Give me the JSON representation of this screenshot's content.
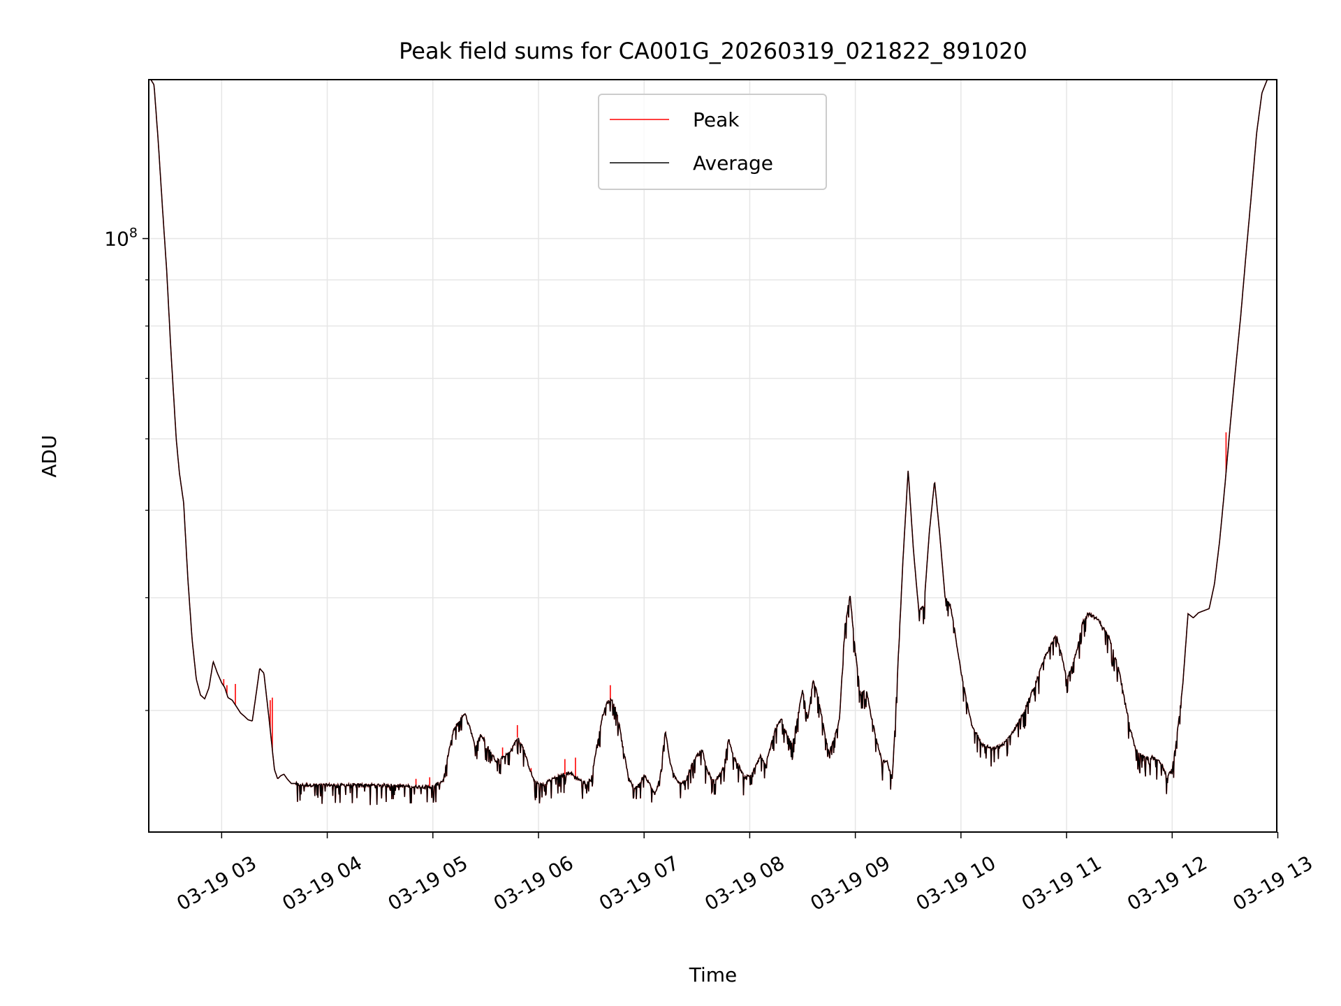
{
  "chart_data": {
    "type": "line",
    "title": "Peak field sums for CA001G_20260319_021822_891020",
    "xlabel": "Time",
    "ylabel": "ADU",
    "yscale": "log",
    "x_unit": "hours",
    "xlim": [
      2.31,
      12.99
    ],
    "ylim": [
      22000000,
      150000000
    ],
    "grid": true,
    "legend_location": "upper center",
    "x_ticks": [
      {
        "value": 3,
        "label": "03-19 03"
      },
      {
        "value": 4,
        "label": "03-19 04"
      },
      {
        "value": 5,
        "label": "03-19 05"
      },
      {
        "value": 6,
        "label": "03-19 06"
      },
      {
        "value": 7,
        "label": "03-19 07"
      },
      {
        "value": 8,
        "label": "03-19 08"
      },
      {
        "value": 9,
        "label": "03-19 09"
      },
      {
        "value": 10,
        "label": "03-19 10"
      },
      {
        "value": 11,
        "label": "03-19 11"
      },
      {
        "value": 12,
        "label": "03-19 12"
      },
      {
        "value": 13,
        "label": "03-19 13"
      }
    ],
    "y_ticks": [
      {
        "value": 100000000,
        "base": "10",
        "exp": "8"
      }
    ],
    "y_minor_ticks": [
      30000000,
      40000000,
      50000000,
      60000000,
      70000000,
      80000000,
      90000000
    ],
    "series": [
      {
        "name": "Average",
        "color": "#000000",
        "x": [
          2.31,
          2.33,
          2.36,
          2.4,
          2.44,
          2.48,
          2.52,
          2.57,
          2.6,
          2.64,
          2.68,
          2.72,
          2.76,
          2.8,
          2.84,
          2.88,
          2.92,
          2.96,
          3.0,
          3.03,
          3.06,
          3.1,
          3.14,
          3.18,
          3.21,
          3.25,
          3.29,
          3.33,
          3.36,
          3.4,
          3.45,
          3.5,
          3.53,
          3.56,
          3.59,
          3.62,
          3.66,
          3.7,
          3.75,
          3.8,
          3.85,
          3.9,
          4.0,
          4.2,
          4.4,
          4.6,
          4.8,
          5.0,
          5.1,
          5.15,
          5.2,
          5.25,
          5.3,
          5.35,
          5.4,
          5.45,
          5.5,
          5.55,
          5.6,
          5.65,
          5.7,
          5.75,
          5.8,
          5.85,
          5.9,
          5.95,
          6.0,
          6.05,
          6.1,
          6.2,
          6.3,
          6.35,
          6.4,
          6.45,
          6.5,
          6.55,
          6.6,
          6.65,
          6.7,
          6.75,
          6.8,
          6.85,
          6.9,
          6.95,
          7.0,
          7.05,
          7.1,
          7.15,
          7.2,
          7.25,
          7.3,
          7.35,
          7.4,
          7.45,
          7.5,
          7.55,
          7.6,
          7.65,
          7.7,
          7.75,
          7.8,
          7.85,
          7.9,
          7.95,
          8.0,
          8.05,
          8.1,
          8.15,
          8.2,
          8.25,
          8.3,
          8.35,
          8.4,
          8.45,
          8.5,
          8.55,
          8.6,
          8.65,
          8.7,
          8.75,
          8.8,
          8.85,
          8.9,
          8.95,
          9.0,
          9.05,
          9.1,
          9.15,
          9.2,
          9.25,
          9.3,
          9.35,
          9.4,
          9.45,
          9.5,
          9.55,
          9.6,
          9.65,
          9.7,
          9.75,
          9.8,
          9.85,
          9.9,
          9.95,
          10.0,
          10.1,
          10.2,
          10.3,
          10.4,
          10.5,
          10.6,
          10.7,
          10.8,
          10.85,
          10.9,
          10.95,
          11.0,
          11.05,
          11.1,
          11.15,
          11.2,
          11.3,
          11.4,
          11.5,
          11.55,
          11.6,
          11.65,
          11.7,
          11.75,
          11.8,
          11.9,
          11.95,
          12.0,
          12.05,
          12.1,
          12.15,
          12.2,
          12.25,
          12.3,
          12.35,
          12.4,
          12.45,
          12.5,
          12.55,
          12.6,
          12.65,
          12.7,
          12.75,
          12.8,
          12.85,
          12.9,
          12.95,
          12.99
        ],
        "values": [
          150000000,
          150000000,
          148000000,
          128000000,
          108000000,
          92000000,
          75000000,
          60000000,
          55000000,
          51000000,
          42000000,
          36000000,
          32500000,
          31200000,
          30900000,
          31800000,
          34000000,
          33000000,
          32200000,
          31800000,
          31000000,
          30800000,
          30300000,
          29800000,
          29600000,
          29300000,
          29200000,
          31500000,
          33400000,
          33000000,
          29300000,
          25800000,
          25200000,
          25400000,
          25500000,
          25200000,
          24900000,
          24900000,
          24800000,
          24800000,
          24800000,
          24800000,
          24800000,
          24800000,
          24800000,
          24800000,
          24700000,
          24700000,
          25100000,
          27000000,
          28600000,
          29200000,
          29800000,
          28800000,
          27300000,
          28200000,
          27700000,
          26900000,
          26400000,
          26600000,
          26800000,
          27200000,
          28000000,
          27400000,
          26200000,
          25200000,
          24900000,
          24800000,
          25100000,
          25400000,
          25600000,
          25300000,
          25100000,
          24900000,
          25200000,
          27300000,
          29400000,
          30600000,
          30900000,
          29600000,
          27400000,
          25300000,
          24600000,
          24800000,
          25500000,
          24900000,
          24200000,
          25200000,
          28500000,
          26100000,
          25200000,
          24900000,
          25100000,
          26200000,
          26800000,
          27100000,
          25700000,
          25100000,
          25300000,
          25900000,
          27900000,
          26600000,
          26000000,
          25300000,
          25400000,
          25900000,
          26700000,
          26100000,
          27400000,
          28800000,
          29400000,
          28200000,
          27600000,
          29300000,
          31600000,
          29400000,
          32500000,
          31000000,
          28700000,
          26900000,
          27900000,
          29300000,
          37100000,
          40300000,
          34800000,
          31200000,
          31800000,
          29600000,
          27900000,
          26400000,
          26300000,
          25200000,
          33000000,
          43800000,
          55400000,
          45200000,
          38700000,
          39100000,
          47200000,
          53900000,
          46900000,
          40000000,
          39200000,
          36200000,
          33100000,
          29000000,
          27500000,
          27200000,
          27500000,
          28500000,
          30000000,
          32000000,
          34500000,
          35400000,
          36400000,
          34800000,
          32500000,
          33500000,
          35000000,
          37500000,
          38500000,
          37800000,
          36200000,
          33200000,
          30800000,
          28800000,
          27200000,
          26800000,
          26600000,
          26700000,
          26200000,
          25300000,
          25800000,
          28400000,
          32000000,
          38400000,
          38000000,
          38500000,
          38700000,
          38900000,
          41400000,
          46300000,
          53400000,
          62200000,
          71700000,
          82300000,
          96400000,
          112000000,
          131000000,
          145000000,
          150000000,
          150000000,
          150000000
        ]
      },
      {
        "name": "Peak",
        "color": "#ff0000",
        "base_series": "Average",
        "spikes": [
          {
            "x": 3.02,
            "y": 32500000
          },
          {
            "x": 3.05,
            "y": 32000000
          },
          {
            "x": 3.13,
            "y": 32100000
          },
          {
            "x": 3.46,
            "y": 30800000
          },
          {
            "x": 3.48,
            "y": 31000000
          },
          {
            "x": 4.84,
            "y": 25200000
          },
          {
            "x": 4.97,
            "y": 25300000
          },
          {
            "x": 5.66,
            "y": 27300000
          },
          {
            "x": 5.8,
            "y": 28900000
          },
          {
            "x": 5.93,
            "y": 25900000
          },
          {
            "x": 6.25,
            "y": 26500000
          },
          {
            "x": 6.35,
            "y": 26600000
          },
          {
            "x": 6.68,
            "y": 32000000
          },
          {
            "x": 12.51,
            "y": 61000000
          }
        ]
      }
    ],
    "legend": [
      {
        "label": "Peak",
        "color": "#ff0000"
      },
      {
        "label": "Average",
        "color": "#000000"
      }
    ]
  }
}
